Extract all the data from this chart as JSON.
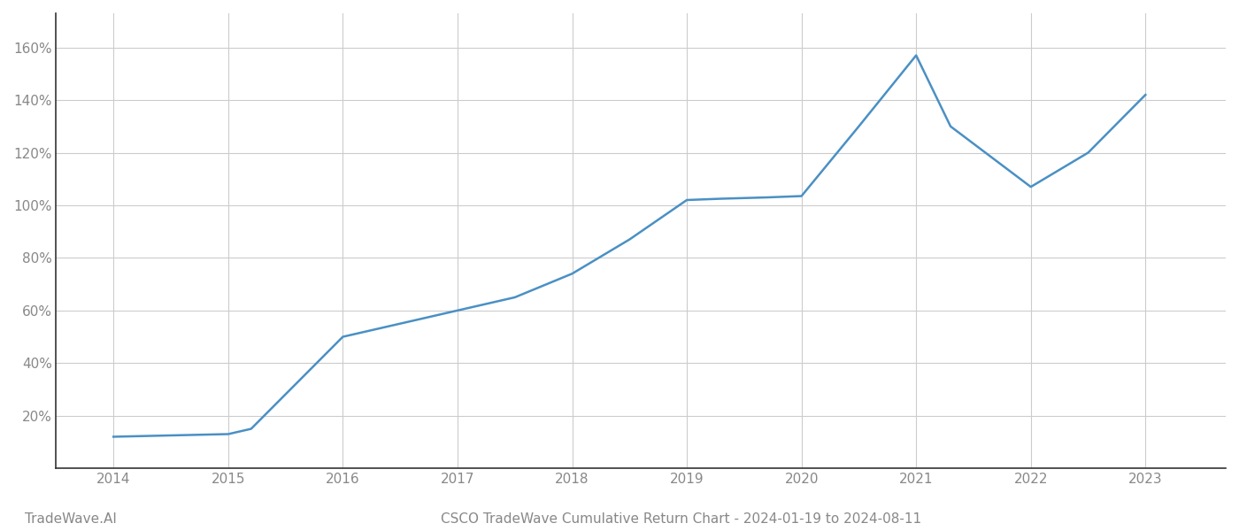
{
  "x_years": [
    2014,
    2014.5,
    2015,
    2015.2,
    2016,
    2016.5,
    2017,
    2017.5,
    2018,
    2018.5,
    2019,
    2019.3,
    2019.7,
    2020,
    2020.5,
    2021,
    2021.3,
    2022,
    2022.5,
    2023
  ],
  "y_values": [
    12,
    12.5,
    13,
    15,
    50,
    55,
    60,
    65,
    74,
    87,
    102,
    102.5,
    103,
    103.5,
    130,
    157,
    130,
    107,
    120,
    142
  ],
  "line_color": "#4a90c4",
  "line_width": 1.8,
  "title": "CSCO TradeWave Cumulative Return Chart - 2024-01-19 to 2024-08-11",
  "watermark": "TradeWave.AI",
  "background_color": "#ffffff",
  "grid_color": "#cccccc",
  "ytick_labels": [
    "20%",
    "40%",
    "60%",
    "80%",
    "100%",
    "120%",
    "140%",
    "160%"
  ],
  "ytick_values": [
    20,
    40,
    60,
    80,
    100,
    120,
    140,
    160
  ],
  "xlim": [
    2013.5,
    2023.7
  ],
  "ylim": [
    0,
    173
  ],
  "xtick_years": [
    2014,
    2015,
    2016,
    2017,
    2018,
    2019,
    2020,
    2021,
    2022,
    2023
  ],
  "title_fontsize": 11,
  "watermark_fontsize": 11,
  "axis_tick_color": "#888888",
  "spine_color": "#333333",
  "left_spine_color": "#333333"
}
